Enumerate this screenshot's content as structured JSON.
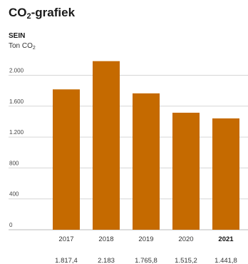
{
  "header": {
    "title_main": "CO",
    "title_sub": "2",
    "title_rest": "-grafiek",
    "company": "SEIN",
    "unit_main": "Ton CO",
    "unit_sub": "2"
  },
  "colors": {
    "bar": "#c56a00",
    "grid": "#d6d6d6",
    "axis": "#bbbbbb"
  },
  "chart_data": {
    "type": "bar",
    "categories": [
      "2017",
      "2018",
      "2019",
      "2020",
      "2021"
    ],
    "highlight_category": "2021",
    "values": [
      1817.4,
      2183,
      1765.8,
      1515.2,
      1441.8
    ],
    "value_labels": [
      "1.817,4",
      "2.183",
      "1.765,8",
      "1.515,2",
      "1.441,8"
    ],
    "yticks": [
      0,
      400,
      800,
      1200,
      1600,
      2000
    ],
    "ytick_labels": [
      "0",
      "400",
      "800",
      "1.200",
      "1.600",
      "2.000"
    ],
    "ylim": [
      0,
      2200
    ],
    "title": "CO₂-grafiek",
    "subtitle": "SEIN",
    "ylabel": "Ton CO₂",
    "xlabel": "",
    "grid": true,
    "legend": "none"
  }
}
